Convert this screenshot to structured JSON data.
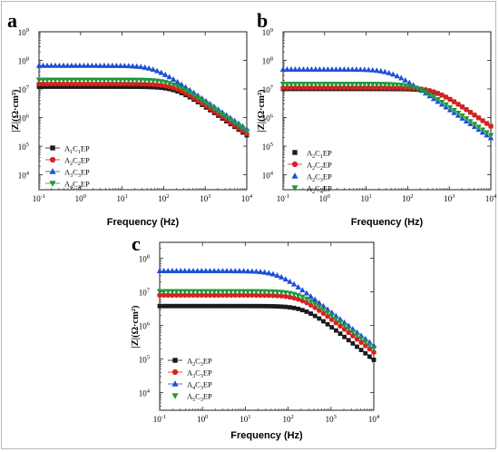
{
  "chart_data": [
    {
      "panel_label": "a",
      "type": "scatter",
      "xlabel": "Frequency (Hz)",
      "ylabel": "|Z|(Ω·cm²)",
      "x_scale": "log",
      "y_scale": "log",
      "xlim": [
        0.1,
        10000
      ],
      "ylim": [
        3000,
        1000000000
      ],
      "x_ticks": [
        {
          "v": 0.1,
          "m": "10",
          "e": "-1"
        },
        {
          "v": 1,
          "m": "10",
          "e": "0"
        },
        {
          "v": 10,
          "m": "10",
          "e": "1"
        },
        {
          "v": 100,
          "m": "10",
          "e": "2"
        },
        {
          "v": 1000,
          "m": "10",
          "e": "3"
        },
        {
          "v": 10000,
          "m": "10",
          "e": "4"
        }
      ],
      "y_ticks": [
        {
          "v": 10000,
          "m": "10",
          "e": "4"
        },
        {
          "v": 100000,
          "m": "10",
          "e": "5"
        },
        {
          "v": 1000000,
          "m": "10",
          "e": "6"
        },
        {
          "v": 10000000,
          "m": "10",
          "e": "7"
        },
        {
          "v": 100000000,
          "m": "10",
          "e": "8"
        },
        {
          "v": 1000000000,
          "m": "10",
          "e": "9"
        }
      ],
      "legend_position": "left-center",
      "series": [
        {
          "name": "A₁C₁EP",
          "base": "A",
          "sub1": "1",
          "mid": "C",
          "sub2": "1",
          "tail": "EP",
          "marker": "square",
          "color": "#1a1a1a",
          "line": true,
          "plateau": 12000000,
          "corner": 200
        },
        {
          "name": "A₂C₂EP",
          "base": "A",
          "sub1": "2",
          "mid": "C",
          "sub2": "2",
          "tail": "EP",
          "marker": "circle",
          "color": "#d92020",
          "line": true,
          "plateau": 15000000,
          "corner": 180
        },
        {
          "name": "A₃C₃EP",
          "base": "A",
          "sub1": "3",
          "mid": "C",
          "sub2": "3",
          "tail": "EP",
          "marker": "triangle",
          "color": "#1c4fd8",
          "line": true,
          "plateau": 65000000,
          "corner": 60
        },
        {
          "name": "A₄C₄EP",
          "base": "A",
          "sub1": "4",
          "mid": "C",
          "sub2": "4",
          "tail": "EP",
          "marker": "triangle-down",
          "color": "#1f9a3a",
          "line": true,
          "plateau": 21000000,
          "corner": 160
        }
      ]
    },
    {
      "panel_label": "b",
      "type": "scatter",
      "xlabel": "Frequency (Hz)",
      "ylabel": "|Z|(Ω·cm²)",
      "x_scale": "log",
      "y_scale": "log",
      "xlim": [
        0.1,
        10000
      ],
      "ylim": [
        3000,
        1000000000
      ],
      "x_ticks": [
        {
          "v": 0.1,
          "m": "10",
          "e": "-1"
        },
        {
          "v": 1,
          "m": "10",
          "e": "0"
        },
        {
          "v": 10,
          "m": "10",
          "e": "1"
        },
        {
          "v": 100,
          "m": "10",
          "e": "2"
        },
        {
          "v": 1000,
          "m": "10",
          "e": "3"
        },
        {
          "v": 10000,
          "m": "10",
          "e": "4"
        }
      ],
      "y_ticks": [
        {
          "v": 10000,
          "m": "10",
          "e": "4"
        },
        {
          "v": 100000,
          "m": "10",
          "e": "5"
        },
        {
          "v": 1000000,
          "m": "10",
          "e": "6"
        },
        {
          "v": 10000000,
          "m": "10",
          "e": "7"
        },
        {
          "v": 100000000,
          "m": "10",
          "e": "8"
        },
        {
          "v": 1000000000,
          "m": "10",
          "e": "9"
        }
      ],
      "legend_position": "left-center",
      "series": [
        {
          "name": "A₂C₁EP",
          "base": "A",
          "sub1": "2",
          "mid": "C",
          "sub2": "1",
          "tail": "EP",
          "marker": "square",
          "color": "#1a1a1a",
          "line": false,
          "plateau": 10000000,
          "corner": 500
        },
        {
          "name": "A₂C₂EP",
          "base": "A",
          "sub1": "2",
          "mid": "C",
          "sub2": "2",
          "tail": "EP",
          "marker": "circle",
          "color": "#d92020",
          "line": true,
          "plateau": 11000000,
          "corner": 450
        },
        {
          "name": "A₂C₃EP",
          "base": "A",
          "sub1": "2",
          "mid": "C",
          "sub2": "3",
          "tail": "EP",
          "marker": "triangle",
          "color": "#1c4fd8",
          "line": false,
          "plateau": 48000000,
          "corner": 40
        },
        {
          "name": "A₂C₄EP",
          "base": "A",
          "sub1": "2",
          "mid": "C",
          "sub2": "4",
          "tail": "EP",
          "marker": "triangle-down",
          "color": "#1f9a3a",
          "line": false,
          "plateau": 15000000,
          "corner": 160
        }
      ]
    },
    {
      "panel_label": "c",
      "type": "scatter",
      "xlabel": "Frequency (Hz)",
      "ylabel": "|Z|(Ω·cm²)",
      "x_scale": "log",
      "y_scale": "log",
      "xlim": [
        0.1,
        10000
      ],
      "ylim": [
        3000,
        300000000
      ],
      "x_ticks": [
        {
          "v": 0.1,
          "m": "10",
          "e": "-1"
        },
        {
          "v": 1,
          "m": "10",
          "e": "0"
        },
        {
          "v": 10,
          "m": "10",
          "e": "1"
        },
        {
          "v": 100,
          "m": "10",
          "e": "2"
        },
        {
          "v": 1000,
          "m": "10",
          "e": "3"
        },
        {
          "v": 10000,
          "m": "10",
          "e": "4"
        }
      ],
      "y_ticks": [
        {
          "v": 10000,
          "m": "10",
          "e": "4"
        },
        {
          "v": 100000,
          "m": "10",
          "e": "5"
        },
        {
          "v": 1000000,
          "m": "10",
          "e": "6"
        },
        {
          "v": 10000000,
          "m": "10",
          "e": "7"
        },
        {
          "v": 100000000,
          "m": "10",
          "e": "8"
        }
      ],
      "legend_position": "left-center",
      "series": [
        {
          "name": "A₂C₃EP",
          "base": "A",
          "sub1": "2",
          "mid": "C",
          "sub2": "3",
          "tail": "EP",
          "marker": "square",
          "color": "#1a1a1a",
          "line": true,
          "plateau": 3800000,
          "corner": 250
        },
        {
          "name": "A₃C₃EP",
          "base": "A",
          "sub1": "3",
          "mid": "C",
          "sub2": "3",
          "tail": "EP",
          "marker": "circle",
          "color": "#d92020",
          "line": true,
          "plateau": 8000000,
          "corner": 200
        },
        {
          "name": "A₄C₃EP",
          "base": "A",
          "sub1": "4",
          "mid": "C",
          "sub2": "3",
          "tail": "EP",
          "marker": "triangle",
          "color": "#1c4fd8",
          "line": true,
          "plateau": 42000000,
          "corner": 60
        },
        {
          "name": "A₅C₃EP",
          "base": "A",
          "sub1": "5",
          "mid": "C",
          "sub2": "3",
          "tail": "EP",
          "marker": "triangle-down",
          "color": "#1f9a3a",
          "line": false,
          "plateau": 10500000,
          "corner": 200
        }
      ]
    }
  ]
}
